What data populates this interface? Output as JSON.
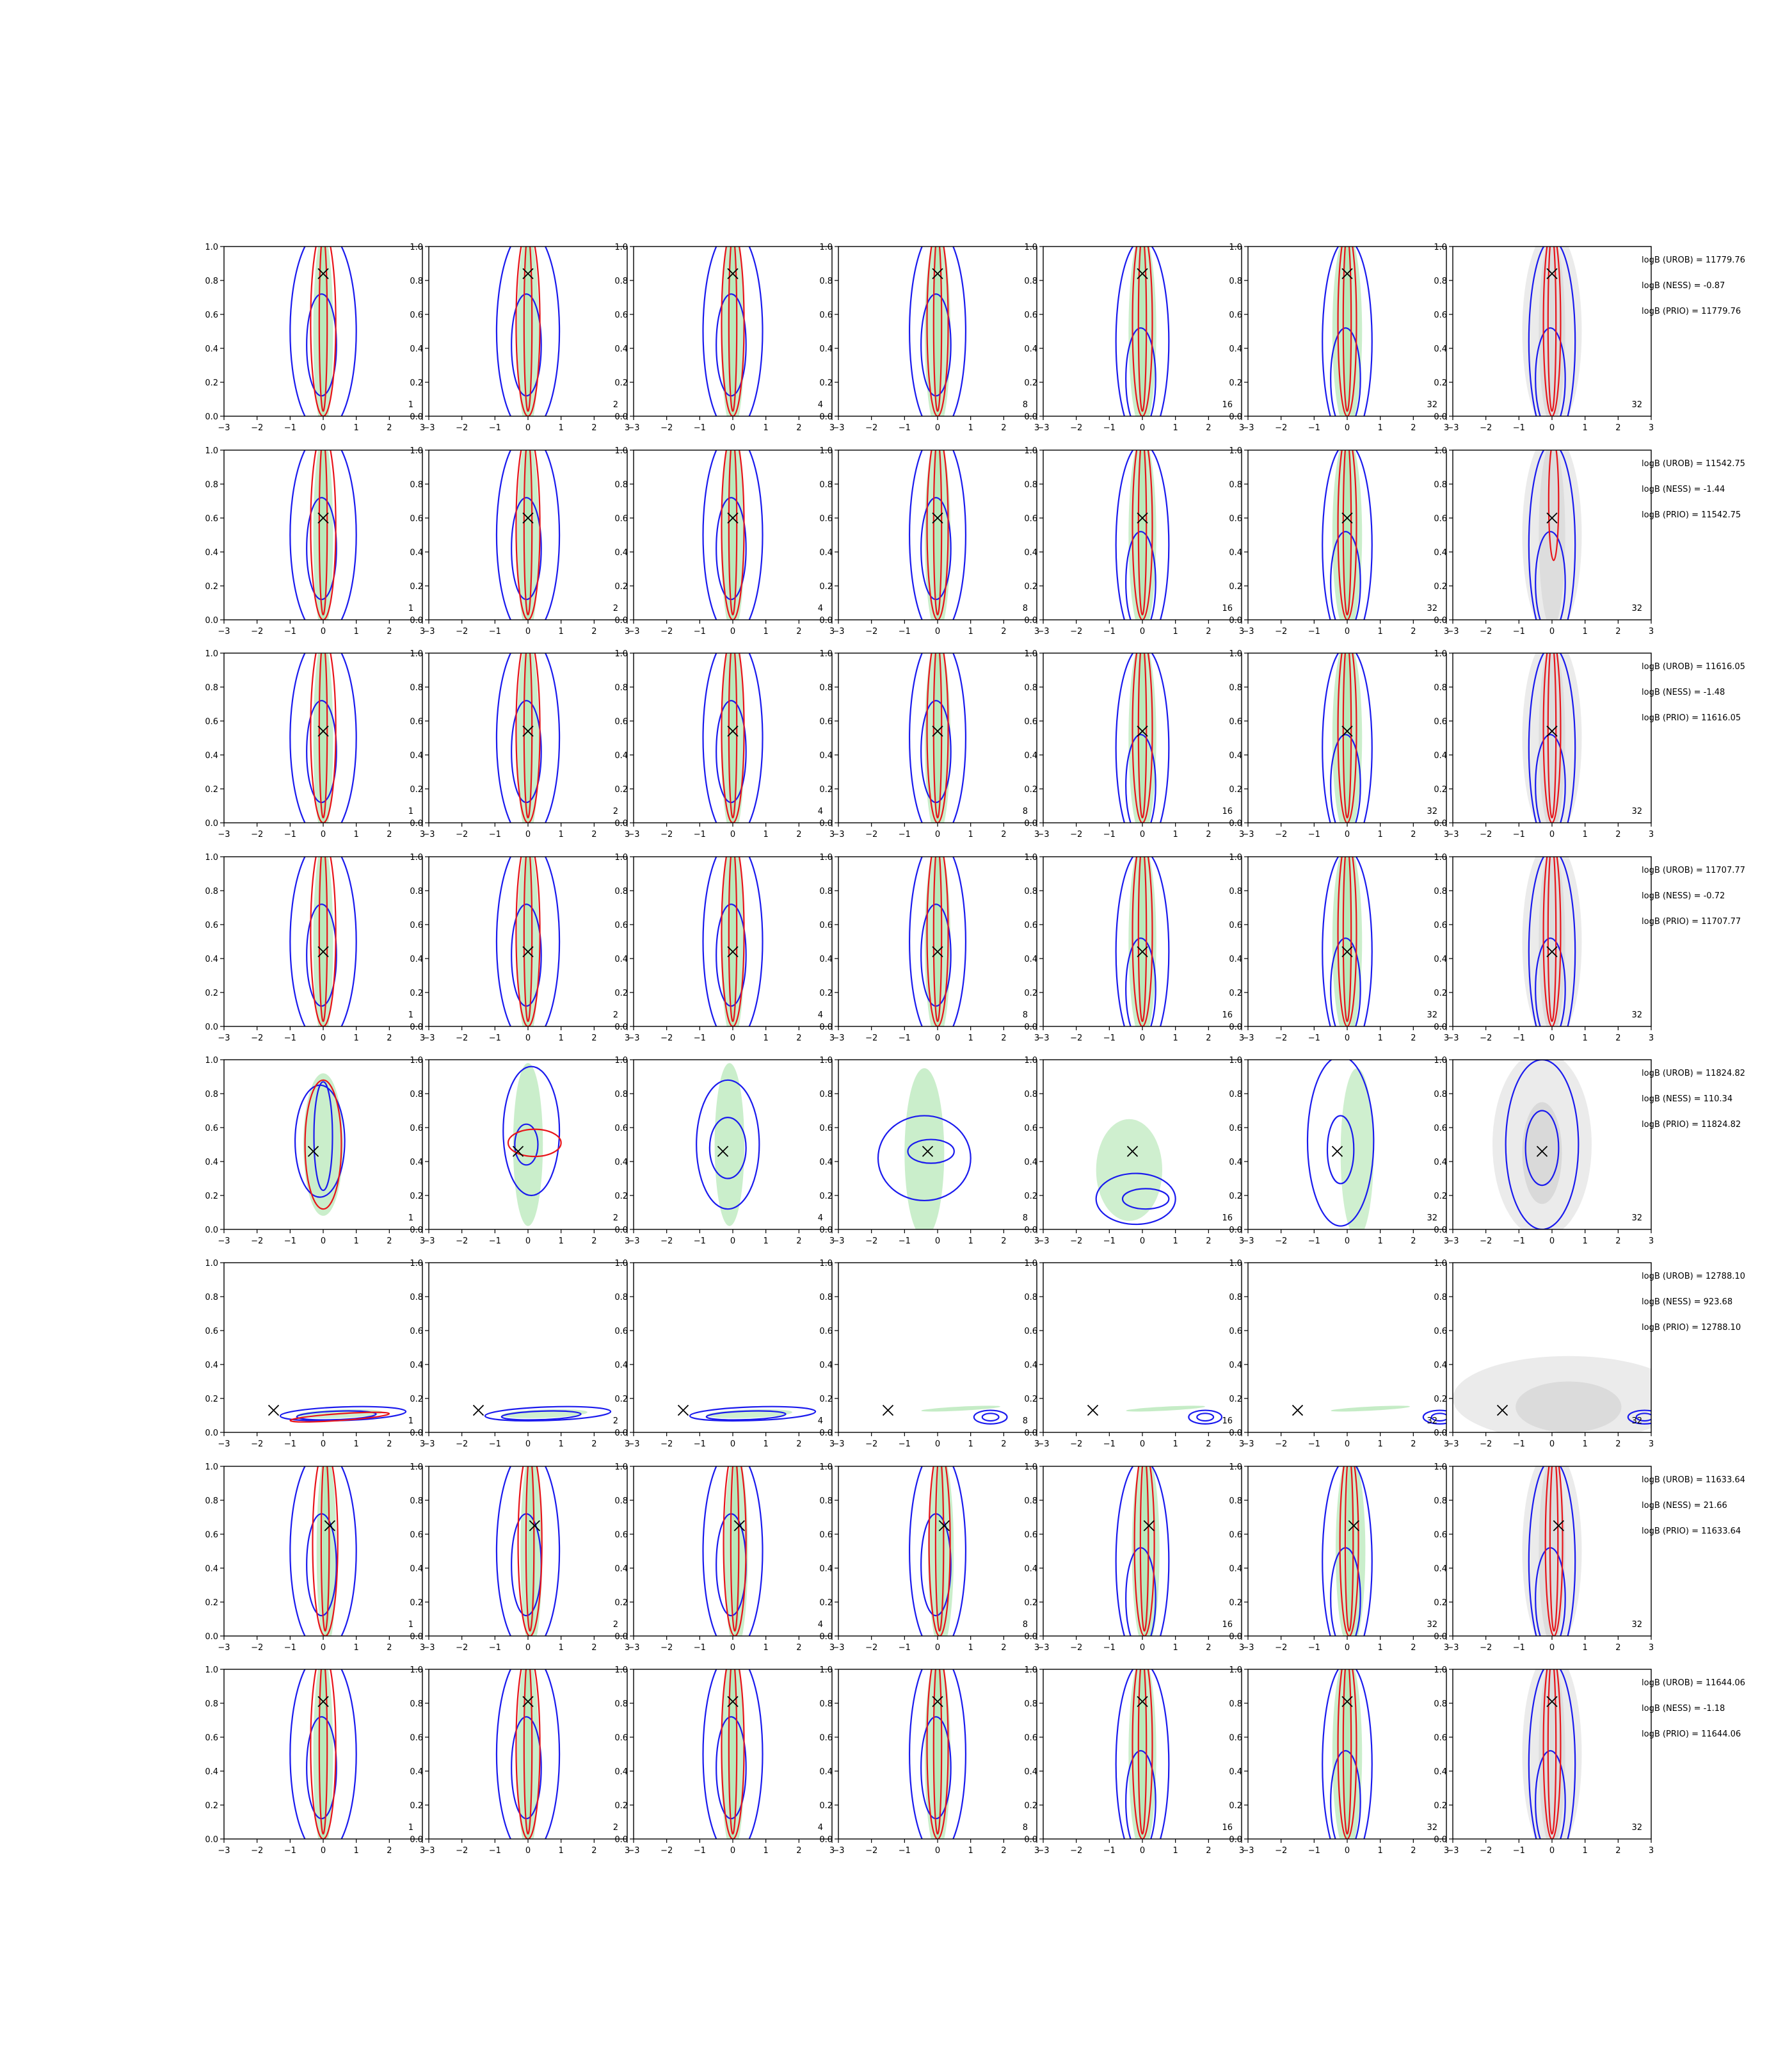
{
  "figure": {
    "background": "#ffffff"
  },
  "colors": {
    "red_contour": "#e8141a",
    "blue_contour": "#1a1aee",
    "green_fill": "#9fe0a0",
    "gray_fill": "#bdbdbd",
    "marker": "#000000",
    "axis": "#000000"
  },
  "chart_data": {
    "type": "contour-grid",
    "rows": 8,
    "cols": 7,
    "xlim": [
      -3,
      3
    ],
    "ylim": [
      0,
      1
    ],
    "xticks": [
      "−3",
      "−2",
      "−1",
      "0",
      "1",
      "2",
      "3"
    ],
    "yticks": [
      "0.0",
      "0.2",
      "0.4",
      "0.6",
      "0.8",
      "1.0"
    ],
    "column_labels": [
      "1",
      "2",
      "4",
      "8",
      "16",
      "32",
      "32"
    ],
    "last_column_uses_gray_prior": true,
    "markers": [
      {
        "x": 0.0,
        "y": 0.84
      },
      {
        "x": 0.0,
        "y": 0.6
      },
      {
        "x": 0.0,
        "y": 0.54
      },
      {
        "x": 0.0,
        "y": 0.44
      },
      {
        "x": -0.3,
        "y": 0.46
      },
      {
        "x": -1.5,
        "y": 0.13
      },
      {
        "x": 0.2,
        "y": 0.65
      },
      {
        "x": 0.0,
        "y": 0.81
      }
    ],
    "annotations": [
      [
        "logB (UROB) = 11779.76",
        "logB (NESS) = -0.87",
        "logB (PRIO) = 11779.76"
      ],
      [
        "logB (UROB) = 11542.75",
        "logB (NESS) = -1.44",
        "logB (PRIO) = 11542.75"
      ],
      [
        "logB (UROB) = 11616.05",
        "logB (NESS) = -1.48",
        "logB (PRIO) = 11616.05"
      ],
      [
        "logB (UROB) = 11707.77",
        "logB (NESS) = -0.72",
        "logB (PRIO) = 11707.77"
      ],
      [
        "logB (UROB) = 11824.82",
        "logB (NESS) = 110.34",
        "logB (PRIO) = 11824.82"
      ],
      [
        "logB (UROB) = 12788.10",
        "logB (NESS) = 923.68",
        "logB (PRIO) = 12788.10"
      ],
      [
        "logB (UROB) = 11633.64",
        "logB (NESS) = 21.66",
        "logB (PRIO) = 11633.64"
      ],
      [
        "logB (UROB) = 11644.06",
        "logB (NESS) = -1.18",
        "logB (PRIO) = 11644.06"
      ]
    ],
    "contours": {
      "note": "Contour shapes: ellipses centered in data units (cx, cy, sx, sy) for green/gray fills, blue and red outlines",
      "vertical": {
        "green": [
          {
            "cx": 0,
            "cy": 0.55,
            "sx": 0.22,
            "sy": 0.55
          },
          {
            "cx": 0,
            "cy": 0.55,
            "sx": 0.12,
            "sy": 0.5
          }
        ],
        "blue": [
          {
            "cx": 0,
            "cy": 0.5,
            "sx": 1.1,
            "sy": 0.55
          },
          {
            "cx": 0,
            "cy": 0.45,
            "sx": 0.45,
            "sy": 0.28
          }
        ],
        "red": [
          {
            "cx": 0,
            "cy": 0.6,
            "sx": 0.45,
            "sy": 0.5
          },
          {
            "cx": 0,
            "cy": 0.6,
            "sx": 0.15,
            "sy": 0.48
          }
        ]
      }
    }
  }
}
